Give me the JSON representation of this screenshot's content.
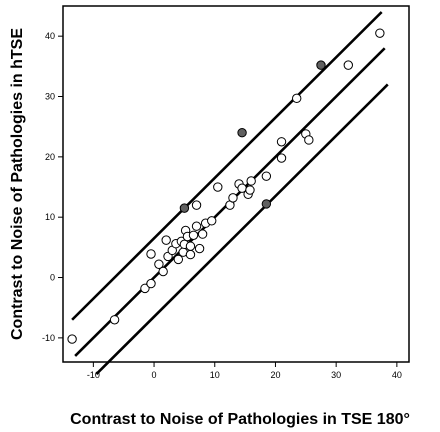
{
  "chart_data": {
    "type": "scatter",
    "title": "",
    "xlabel": "Contrast to Noise of Pathologies in TSE 180°",
    "ylabel": "Contrast to Noise of Pathologies in hTSE",
    "xlim": [
      -15,
      42
    ],
    "ylim": [
      -14,
      45
    ],
    "x_ticks": [
      -10,
      0,
      10,
      20,
      30,
      40
    ],
    "y_ticks": [
      -10,
      0,
      10,
      20,
      30,
      40
    ],
    "x_tick_labels": [
      "-10",
      "0",
      "10",
      "20",
      "30",
      "40"
    ],
    "y_tick_labels": [
      "-10",
      "0",
      "10",
      "20",
      "30",
      "40"
    ],
    "grid": false,
    "legend": "none",
    "colors": {
      "open_marker_fill": "#ffffff",
      "filled_marker": "#606060",
      "line": "#000000",
      "frame": "#000000"
    },
    "series": [
      {
        "marker": "open-circle",
        "points": [
          [
            -13.5,
            -10.2
          ],
          [
            -6.5,
            -7.0
          ],
          [
            -1.5,
            -1.8
          ],
          [
            -0.5,
            -1.0
          ],
          [
            -0.5,
            3.9
          ],
          [
            0.8,
            2.2
          ],
          [
            1.5,
            1.0
          ],
          [
            2.0,
            6.2
          ],
          [
            2.3,
            3.5
          ],
          [
            3.0,
            4.5
          ],
          [
            3.6,
            5.6
          ],
          [
            4.0,
            3.0
          ],
          [
            4.5,
            6.0
          ],
          [
            4.8,
            4.2
          ],
          [
            5.0,
            5.5
          ],
          [
            5.2,
            7.8
          ],
          [
            5.5,
            6.8
          ],
          [
            6.0,
            3.8
          ],
          [
            6.0,
            5.2
          ],
          [
            6.5,
            7.0
          ],
          [
            7.0,
            12.0
          ],
          [
            7.0,
            8.5
          ],
          [
            7.5,
            4.8
          ],
          [
            8.0,
            7.2
          ],
          [
            8.5,
            9.0
          ],
          [
            9.5,
            9.4
          ],
          [
            10.5,
            15.0
          ],
          [
            12.5,
            12.0
          ],
          [
            13.0,
            13.2
          ],
          [
            14.0,
            15.5
          ],
          [
            14.5,
            14.8
          ],
          [
            15.5,
            13.8
          ],
          [
            15.8,
            14.5
          ],
          [
            16.0,
            16.0
          ],
          [
            18.5,
            16.8
          ],
          [
            21.0,
            22.5
          ],
          [
            21.0,
            19.8
          ],
          [
            23.5,
            29.7
          ],
          [
            25.0,
            23.8
          ],
          [
            25.5,
            22.8
          ],
          [
            32.0,
            35.2
          ],
          [
            37.2,
            40.5
          ]
        ]
      },
      {
        "marker": "filled-circle",
        "points": [
          [
            5.0,
            11.5
          ],
          [
            14.5,
            24.0
          ],
          [
            18.5,
            12.2
          ],
          [
            27.5,
            35.2
          ]
        ]
      }
    ],
    "lines": [
      {
        "role": "identity",
        "intercept": 0.0,
        "slope": 1.0,
        "x_range": [
          -13.0,
          38.0
        ]
      },
      {
        "role": "upper-limit",
        "intercept": 6.5,
        "slope": 1.0,
        "x_range": [
          -13.5,
          37.5
        ]
      },
      {
        "role": "lower-limit",
        "intercept": -6.5,
        "slope": 1.0,
        "x_range": [
          -9.5,
          38.5
        ]
      }
    ]
  }
}
